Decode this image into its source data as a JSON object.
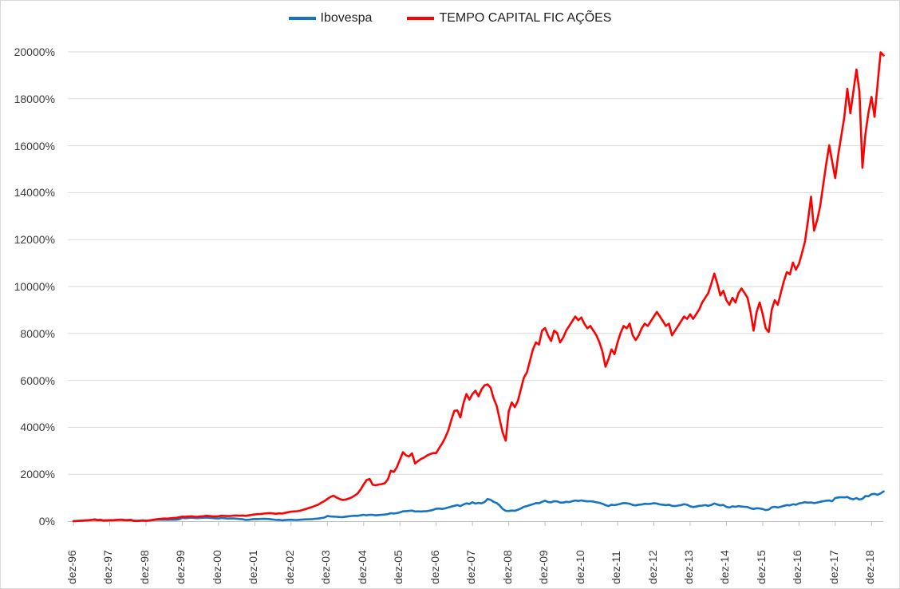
{
  "legend": {
    "position": "top-center",
    "items": [
      {
        "label": "Ibovespa",
        "color": "#1473c2"
      },
      {
        "label": "TEMPO CAPITAL FIC AÇÕES",
        "color": "#ff0000"
      }
    ]
  },
  "colors": {
    "background": "#ffffff",
    "border": "#d9d9d9",
    "gridline": "#d9d9d9",
    "axis_line": "#bfbfbf",
    "tick_mark": "#bfbfbf",
    "axis_text": "#3b3b3b"
  },
  "chart_data": {
    "type": "line",
    "title": "",
    "xlabel": "",
    "ylabel": "",
    "grid": "horizontal",
    "legend_position": "top-center",
    "ylim": [
      0,
      20000
    ],
    "y_tick_step": 2000,
    "y_tick_labels": [
      "0%",
      "2000%",
      "4000%",
      "6000%",
      "8000%",
      "10000%",
      "12000%",
      "14000%",
      "16000%",
      "18000%",
      "20000%"
    ],
    "x_tick_labels": [
      "dez-96",
      "dez-97",
      "dez-98",
      "dez-99",
      "dez-00",
      "dez-01",
      "dez-02",
      "dez-03",
      "dez-04",
      "dez-05",
      "dez-06",
      "dez-07",
      "dez-08",
      "dez-09",
      "dez-10",
      "dez-11",
      "dez-12",
      "dez-13",
      "dez-14",
      "dez-15",
      "dez-16",
      "dez-17",
      "dez-18"
    ],
    "x_unit": "monthly cumulative return (%), dez-96 through abr-19",
    "series": [
      {
        "name": "Ibovespa",
        "color": "#1473c2",
        "values": [
          0,
          10,
          18,
          22,
          30,
          42,
          55,
          78,
          52,
          62,
          32,
          38,
          45,
          40,
          50,
          62,
          64,
          52,
          48,
          60,
          12,
          18,
          24,
          32,
          20,
          28,
          42,
          58,
          62,
          60,
          65,
          58,
          60,
          62,
          64,
          82,
          143,
          130,
          140,
          150,
          138,
          128,
          142,
          145,
          152,
          142,
          132,
          122,
          117,
          135,
          125,
          112,
          118,
          114,
          106,
          92,
          82,
          52,
          62,
          78,
          93,
          88,
          96,
          98,
          94,
          88,
          72,
          52,
          58,
          38,
          48,
          58,
          60,
          55,
          52,
          62,
          72,
          78,
          82,
          88,
          102,
          112,
          132,
          152,
          216,
          200,
          195,
          188,
          178,
          172,
          192,
          208,
          220,
          232,
          228,
          252,
          272,
          250,
          272,
          268,
          248,
          262,
          272,
          282,
          302,
          340,
          322,
          342,
          375,
          420,
          428,
          438,
          448,
          412,
          418,
          412,
          422,
          428,
          452,
          482,
          532,
          538,
          522,
          548,
          580,
          622,
          652,
          682,
          642,
          712,
          758,
          732,
          807,
          750,
          778,
          758,
          812,
          944,
          908,
          822,
          772,
          672,
          522,
          442,
          433,
          452,
          442,
          482,
          542,
          612,
          642,
          682,
          722,
          772,
          762,
          822,
          874,
          812,
          802,
          852,
          842,
          792,
          792,
          822,
          812,
          852,
          882,
          862,
          884,
          862,
          842,
          852,
          832,
          802,
          782,
          742,
          682,
          642,
          702,
          682,
          706,
          742,
          772,
          762,
          742,
          692,
          672,
          702,
          712,
          742,
          732,
          742,
          766,
          752,
          712,
          702,
          682,
          702,
          652,
          642,
          662,
          682,
          722,
          702,
          632,
          602,
          622,
          652,
          662,
          682,
          652,
          692,
          752,
          712,
          672,
          692,
          610,
          582,
          632,
          612,
          642,
          622,
          612,
          602,
          552,
          522,
          552,
          542,
          516,
          472,
          492,
          592,
          612,
          582,
          612,
          652,
          682,
          672,
          722,
          702,
          755,
          778,
          808,
          788,
          798,
          768,
          792,
          822,
          852,
          872,
          882,
          852,
          985,
          1010,
          1022,
          1012,
          1032,
          962,
          932,
          982,
          922,
          952,
          1072,
          1062,
          1148,
          1162,
          1122,
          1182,
          1269
        ]
      },
      {
        "name": "TEMPO CAPITAL FIC AÇÕES",
        "color": "#ff0000",
        "values": [
          0,
          8,
          18,
          25,
          32,
          42,
          52,
          60,
          42,
          48,
          25,
          30,
          35,
          40,
          48,
          58,
          52,
          42,
          38,
          48,
          12,
          8,
          18,
          28,
          18,
          28,
          50,
          75,
          90,
          98,
          112,
          108,
          122,
          132,
          142,
          168,
          195,
          185,
          198,
          208,
          192,
          186,
          202,
          212,
          228,
          218,
          206,
          200,
          212,
          232,
          226,
          216,
          222,
          238,
          242,
          230,
          242,
          226,
          248,
          268,
          285,
          298,
          305,
          322,
          332,
          342,
          330,
          312,
          332,
          322,
          352,
          382,
          405,
          415,
          425,
          445,
          485,
          525,
          565,
          605,
          655,
          705,
          785,
          855,
          950,
          1030,
          1090,
          1010,
          950,
          905,
          920,
          960,
          1010,
          1090,
          1180,
          1350,
          1560,
          1750,
          1800,
          1550,
          1530,
          1560,
          1580,
          1620,
          1780,
          2150,
          2100,
          2300,
          2620,
          2940,
          2810,
          2760,
          2890,
          2460,
          2560,
          2650,
          2710,
          2800,
          2860,
          2900,
          2900,
          3120,
          3320,
          3560,
          3860,
          4310,
          4700,
          4720,
          4420,
          5020,
          5420,
          5180,
          5420,
          5560,
          5320,
          5620,
          5790,
          5830,
          5690,
          5230,
          4920,
          4340,
          3780,
          3430,
          4680,
          5060,
          4860,
          5120,
          5620,
          6120,
          6340,
          6820,
          7320,
          7620,
          7520,
          8120,
          8230,
          7920,
          7680,
          8120,
          8020,
          7620,
          7820,
          8120,
          8320,
          8520,
          8720,
          8560,
          8680,
          8420,
          8220,
          8320,
          8120,
          7920,
          7620,
          7220,
          6580,
          6920,
          7320,
          7120,
          7620,
          8020,
          8320,
          8220,
          8420,
          7920,
          7720,
          7920,
          8220,
          8420,
          8320,
          8520,
          8720,
          8920,
          8720,
          8520,
          8320,
          8420,
          7920,
          8120,
          8320,
          8520,
          8720,
          8620,
          8820,
          8620,
          8820,
          9020,
          9320,
          9520,
          9720,
          10120,
          10550,
          10120,
          9620,
          9820,
          9420,
          9220,
          9520,
          9320,
          9720,
          9920,
          9720,
          9520,
          8920,
          8120,
          8920,
          9320,
          8820,
          8220,
          8060,
          9020,
          9420,
          9220,
          9720,
          10220,
          10620,
          10520,
          11020,
          10720,
          10970,
          11420,
          11920,
          12820,
          13830,
          12380,
          12820,
          13420,
          14320,
          15220,
          16020,
          15320,
          14620,
          15620,
          16420,
          17220,
          18430,
          17380,
          18320,
          19250,
          18320,
          15060,
          16520,
          17420,
          18080,
          17230,
          18630,
          19980,
          19850
        ]
      }
    ]
  }
}
